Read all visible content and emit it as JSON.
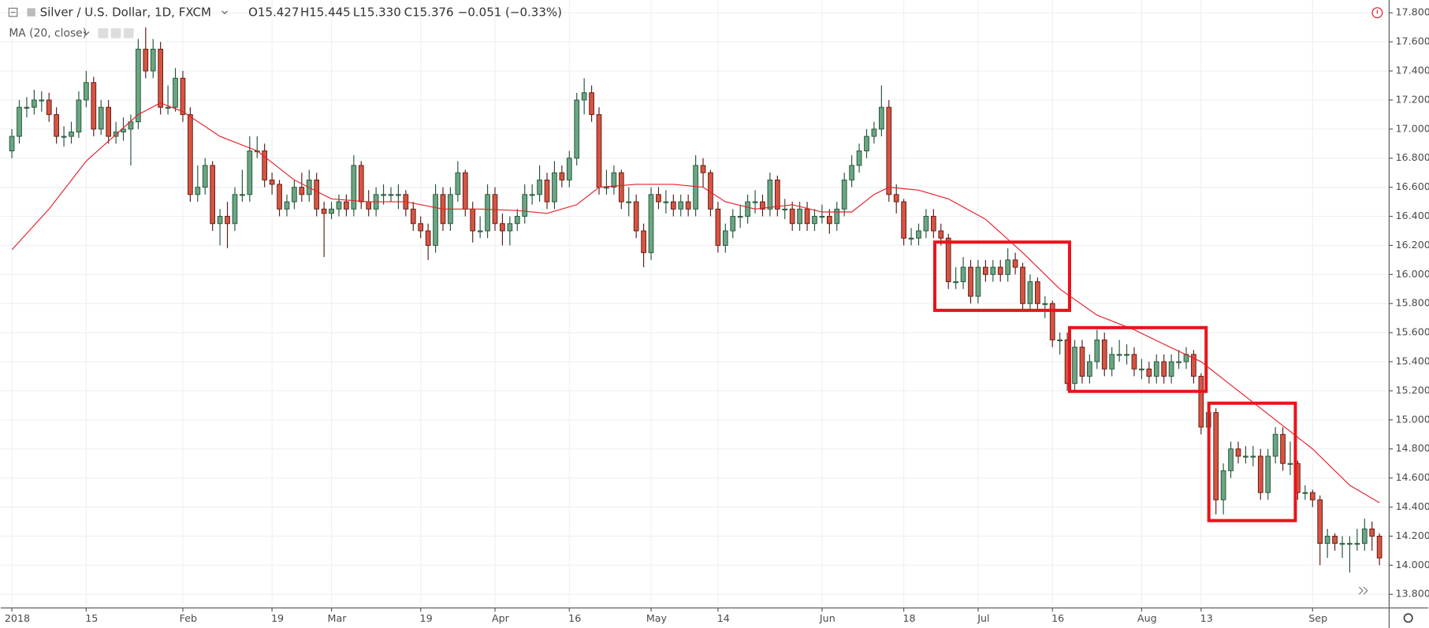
{
  "chart_data": {
    "type": "candlestick",
    "title": "Silver / U.S. Dollar, 1D, FXCM",
    "ohlc_legend": [
      "O15.427",
      "H15.445",
      "L15.330",
      "C15.376",
      "−0.051 (−0.33%)"
    ],
    "indicator": "MA (20, close)",
    "up_color": "#6ba583",
    "up_border": "#225437",
    "down_color": "#d75442",
    "down_border": "#5b1a13",
    "ma_color": "#e8202a",
    "grid": true,
    "ylim": [
      13.706,
      17.888
    ],
    "xlim": [
      -1.5,
      185.3
    ],
    "yticks": [
      {
        "value": 13.8,
        "label": "13.800"
      },
      {
        "value": 14.0,
        "label": "14.000"
      },
      {
        "value": 14.2,
        "label": "14.200"
      },
      {
        "value": 14.4,
        "label": "14.400"
      },
      {
        "value": 14.6,
        "label": "14.600"
      },
      {
        "value": 14.8,
        "label": "14.800"
      },
      {
        "value": 15.0,
        "label": "15.000"
      },
      {
        "value": 15.2,
        "label": "15.200"
      },
      {
        "value": 15.4,
        "label": "15.400"
      },
      {
        "value": 15.6,
        "label": "15.600"
      },
      {
        "value": 15.8,
        "label": "15.800"
      },
      {
        "value": 16.0,
        "label": "16.000"
      },
      {
        "value": 16.2,
        "label": "16.200"
      },
      {
        "value": 16.4,
        "label": "16.400"
      },
      {
        "value": 16.6,
        "label": "16.600"
      },
      {
        "value": 16.8,
        "label": "16.800"
      },
      {
        "value": 17.0,
        "label": "17.000"
      },
      {
        "value": 17.2,
        "label": "17.200"
      },
      {
        "value": 17.4,
        "label": "17.400"
      },
      {
        "value": 17.6,
        "label": "17.600"
      },
      {
        "value": 17.8,
        "label": "17.800"
      }
    ],
    "xticks": [
      {
        "value": 0,
        "label": "2018"
      },
      {
        "value": 10,
        "label": "15"
      },
      {
        "value": 23,
        "label": "Feb"
      },
      {
        "value": 35,
        "label": "19"
      },
      {
        "value": 43,
        "label": "Mar"
      },
      {
        "value": 55,
        "label": "19"
      },
      {
        "value": 65,
        "label": "Apr"
      },
      {
        "value": 75,
        "label": "16"
      },
      {
        "value": 86,
        "label": "May"
      },
      {
        "value": 95,
        "label": "14"
      },
      {
        "value": 109,
        "label": "Jun"
      },
      {
        "value": 120,
        "label": "18"
      },
      {
        "value": 130,
        "label": "Jul"
      },
      {
        "value": 140,
        "label": "16"
      },
      {
        "value": 152,
        "label": "Aug"
      },
      {
        "value": 160,
        "label": "13"
      },
      {
        "value": 175,
        "label": "Sep"
      }
    ],
    "candles": [
      [
        16.85,
        17.0,
        16.8,
        16.95
      ],
      [
        16.95,
        17.2,
        16.9,
        17.15
      ],
      [
        17.15,
        17.22,
        17.08,
        17.15
      ],
      [
        17.15,
        17.27,
        17.1,
        17.2
      ],
      [
        17.2,
        17.26,
        17.12,
        17.2
      ],
      [
        17.2,
        17.25,
        17.05,
        17.1
      ],
      [
        17.1,
        17.15,
        16.9,
        16.95
      ],
      [
        16.95,
        17.02,
        16.88,
        16.95
      ],
      [
        16.95,
        17.05,
        16.9,
        16.98
      ],
      [
        16.98,
        17.26,
        16.94,
        17.2
      ],
      [
        17.2,
        17.4,
        17.15,
        17.32
      ],
      [
        17.32,
        17.36,
        16.95,
        17.0
      ],
      [
        17.0,
        17.2,
        16.96,
        17.15
      ],
      [
        17.15,
        17.2,
        16.9,
        16.95
      ],
      [
        16.95,
        17.05,
        16.9,
        16.98
      ],
      [
        16.98,
        17.08,
        16.92,
        17.0
      ],
      [
        17.0,
        17.1,
        16.75,
        17.05
      ],
      [
        17.05,
        17.62,
        17.0,
        17.55
      ],
      [
        17.55,
        17.7,
        17.35,
        17.4
      ],
      [
        17.4,
        17.62,
        17.35,
        17.55
      ],
      [
        17.55,
        17.6,
        17.1,
        17.15
      ],
      [
        17.15,
        17.3,
        17.1,
        17.15
      ],
      [
        17.15,
        17.42,
        17.12,
        17.35
      ],
      [
        17.35,
        17.4,
        17.05,
        17.1
      ],
      [
        17.1,
        17.15,
        16.5,
        16.55
      ],
      [
        16.55,
        16.75,
        16.5,
        16.6
      ],
      [
        16.6,
        16.8,
        16.55,
        16.75
      ],
      [
        16.75,
        16.78,
        16.3,
        16.35
      ],
      [
        16.35,
        16.45,
        16.2,
        16.4
      ],
      [
        16.4,
        16.5,
        16.18,
        16.35
      ],
      [
        16.35,
        16.6,
        16.3,
        16.55
      ],
      [
        16.55,
        16.72,
        16.5,
        16.55
      ],
      [
        16.55,
        16.95,
        16.5,
        16.85
      ],
      [
        16.85,
        16.95,
        16.8,
        16.85
      ],
      [
        16.85,
        16.9,
        16.6,
        16.65
      ],
      [
        16.65,
        16.7,
        16.55,
        16.62
      ],
      [
        16.62,
        16.65,
        16.4,
        16.45
      ],
      [
        16.45,
        16.55,
        16.4,
        16.5
      ],
      [
        16.5,
        16.65,
        16.45,
        16.6
      ],
      [
        16.6,
        16.7,
        16.5,
        16.55
      ],
      [
        16.55,
        16.72,
        16.5,
        16.65
      ],
      [
        16.65,
        16.7,
        16.4,
        16.45
      ],
      [
        16.45,
        16.5,
        16.12,
        16.42
      ],
      [
        16.42,
        16.5,
        16.38,
        16.45
      ],
      [
        16.45,
        16.55,
        16.4,
        16.5
      ],
      [
        16.5,
        16.55,
        16.4,
        16.45
      ],
      [
        16.45,
        16.82,
        16.4,
        16.75
      ],
      [
        16.75,
        16.78,
        16.45,
        16.5
      ],
      [
        16.5,
        16.58,
        16.4,
        16.45
      ],
      [
        16.45,
        16.6,
        16.4,
        16.55
      ],
      [
        16.55,
        16.62,
        16.48,
        16.55
      ],
      [
        16.55,
        16.6,
        16.5,
        16.55
      ],
      [
        16.55,
        16.62,
        16.45,
        16.55
      ],
      [
        16.55,
        16.58,
        16.4,
        16.45
      ],
      [
        16.45,
        16.5,
        16.3,
        16.35
      ],
      [
        16.35,
        16.4,
        16.25,
        16.3
      ],
      [
        16.3,
        16.35,
        16.1,
        16.2
      ],
      [
        16.2,
        16.62,
        16.15,
        16.55
      ],
      [
        16.55,
        16.6,
        16.3,
        16.35
      ],
      [
        16.35,
        16.6,
        16.3,
        16.55
      ],
      [
        16.55,
        16.78,
        16.5,
        16.7
      ],
      [
        16.7,
        16.72,
        16.4,
        16.45
      ],
      [
        16.45,
        16.5,
        16.22,
        16.3
      ],
      [
        16.3,
        16.4,
        16.25,
        16.3
      ],
      [
        16.3,
        16.62,
        16.25,
        16.55
      ],
      [
        16.55,
        16.6,
        16.3,
        16.35
      ],
      [
        16.35,
        16.42,
        16.2,
        16.3
      ],
      [
        16.3,
        16.4,
        16.2,
        16.35
      ],
      [
        16.35,
        16.45,
        16.3,
        16.4
      ],
      [
        16.4,
        16.62,
        16.35,
        16.55
      ],
      [
        16.55,
        16.62,
        16.48,
        16.55
      ],
      [
        16.55,
        16.75,
        16.5,
        16.65
      ],
      [
        16.65,
        16.7,
        16.45,
        16.5
      ],
      [
        16.5,
        16.78,
        16.45,
        16.7
      ],
      [
        16.7,
        16.75,
        16.6,
        16.65
      ],
      [
        16.65,
        16.85,
        16.6,
        16.8
      ],
      [
        16.8,
        17.25,
        16.75,
        17.2
      ],
      [
        17.2,
        17.35,
        17.1,
        17.25
      ],
      [
        17.25,
        17.3,
        17.05,
        17.1
      ],
      [
        17.1,
        17.15,
        16.55,
        16.6
      ],
      [
        16.6,
        16.72,
        16.55,
        16.6
      ],
      [
        16.6,
        16.75,
        16.55,
        16.7
      ],
      [
        16.7,
        16.72,
        16.45,
        16.5
      ],
      [
        16.5,
        16.6,
        16.4,
        16.5
      ],
      [
        16.5,
        16.55,
        16.25,
        16.3
      ],
      [
        16.3,
        16.35,
        16.05,
        16.15
      ],
      [
        16.15,
        16.6,
        16.1,
        16.55
      ],
      [
        16.55,
        16.6,
        16.45,
        16.5
      ],
      [
        16.5,
        16.58,
        16.42,
        16.5
      ],
      [
        16.5,
        16.55,
        16.4,
        16.45
      ],
      [
        16.45,
        16.55,
        16.4,
        16.5
      ],
      [
        16.5,
        16.55,
        16.4,
        16.45
      ],
      [
        16.45,
        16.82,
        16.4,
        16.75
      ],
      [
        16.75,
        16.8,
        16.6,
        16.7
      ],
      [
        16.7,
        16.72,
        16.4,
        16.45
      ],
      [
        16.45,
        16.5,
        16.15,
        16.2
      ],
      [
        16.2,
        16.35,
        16.15,
        16.3
      ],
      [
        16.3,
        16.45,
        16.25,
        16.4
      ],
      [
        16.4,
        16.48,
        16.32,
        16.4
      ],
      [
        16.4,
        16.55,
        16.35,
        16.5
      ],
      [
        16.5,
        16.58,
        16.42,
        16.5
      ],
      [
        16.5,
        16.55,
        16.4,
        16.45
      ],
      [
        16.45,
        16.7,
        16.4,
        16.65
      ],
      [
        16.65,
        16.68,
        16.4,
        16.45
      ],
      [
        16.45,
        16.52,
        16.38,
        16.45
      ],
      [
        16.45,
        16.5,
        16.3,
        16.35
      ],
      [
        16.35,
        16.5,
        16.3,
        16.45
      ],
      [
        16.45,
        16.5,
        16.3,
        16.35
      ],
      [
        16.35,
        16.45,
        16.3,
        16.4
      ],
      [
        16.4,
        16.48,
        16.35,
        16.4
      ],
      [
        16.4,
        16.45,
        16.28,
        16.35
      ],
      [
        16.35,
        16.5,
        16.3,
        16.45
      ],
      [
        16.45,
        16.7,
        16.4,
        16.65
      ],
      [
        16.65,
        16.82,
        16.6,
        16.75
      ],
      [
        16.75,
        16.9,
        16.7,
        16.85
      ],
      [
        16.85,
        17.0,
        16.8,
        16.95
      ],
      [
        16.95,
        17.05,
        16.9,
        17.0
      ],
      [
        17.0,
        17.3,
        16.95,
        17.15
      ],
      [
        17.15,
        17.2,
        16.5,
        16.55
      ],
      [
        16.55,
        16.62,
        16.42,
        16.5
      ],
      [
        16.5,
        16.52,
        16.2,
        16.25
      ],
      [
        16.25,
        16.32,
        16.2,
        16.25
      ],
      [
        16.25,
        16.35,
        16.2,
        16.3
      ],
      [
        16.3,
        16.45,
        16.25,
        16.4
      ],
      [
        16.4,
        16.45,
        16.25,
        16.3
      ],
      [
        16.3,
        16.35,
        16.2,
        16.25
      ],
      [
        16.25,
        16.28,
        15.9,
        15.95
      ],
      [
        15.95,
        16.05,
        15.9,
        15.95
      ],
      [
        15.95,
        16.12,
        15.9,
        16.05
      ],
      [
        16.05,
        16.1,
        15.8,
        15.85
      ],
      [
        15.85,
        16.1,
        15.8,
        16.05
      ],
      [
        16.05,
        16.1,
        15.95,
        16.0
      ],
      [
        16.0,
        16.1,
        15.95,
        16.05
      ],
      [
        16.05,
        16.1,
        15.95,
        16.0
      ],
      [
        16.0,
        16.18,
        15.95,
        16.1
      ],
      [
        16.1,
        16.15,
        16.0,
        16.05
      ],
      [
        16.05,
        16.08,
        15.75,
        15.8
      ],
      [
        15.8,
        16.0,
        15.75,
        15.95
      ],
      [
        15.95,
        15.98,
        15.75,
        15.8
      ],
      [
        15.8,
        15.85,
        15.7,
        15.8
      ],
      [
        15.8,
        15.82,
        15.5,
        15.55
      ],
      [
        15.55,
        15.6,
        15.45,
        15.55
      ],
      [
        15.55,
        15.6,
        15.2,
        15.25
      ],
      [
        15.25,
        15.55,
        15.2,
        15.5
      ],
      [
        15.5,
        15.55,
        15.25,
        15.3
      ],
      [
        15.3,
        15.45,
        15.25,
        15.4
      ],
      [
        15.4,
        15.62,
        15.35,
        15.55
      ],
      [
        15.55,
        15.6,
        15.3,
        15.35
      ],
      [
        15.35,
        15.5,
        15.3,
        15.45
      ],
      [
        15.45,
        15.55,
        15.4,
        15.45
      ],
      [
        15.45,
        15.52,
        15.38,
        15.45
      ],
      [
        15.45,
        15.5,
        15.3,
        15.35
      ],
      [
        15.35,
        15.42,
        15.28,
        15.35
      ],
      [
        15.35,
        15.4,
        15.25,
        15.3
      ],
      [
        15.3,
        15.45,
        15.25,
        15.4
      ],
      [
        15.4,
        15.45,
        15.25,
        15.3
      ],
      [
        15.3,
        15.45,
        15.25,
        15.4
      ],
      [
        15.4,
        15.48,
        15.35,
        15.4
      ],
      [
        15.4,
        15.5,
        15.35,
        15.45
      ],
      [
        15.45,
        15.48,
        15.25,
        15.3
      ],
      [
        15.3,
        15.32,
        14.9,
        14.95
      ],
      [
        14.95,
        15.1,
        14.9,
        15.05
      ],
      [
        15.05,
        15.08,
        14.35,
        14.45
      ],
      [
        14.45,
        14.7,
        14.35,
        14.65
      ],
      [
        14.65,
        14.85,
        14.6,
        14.8
      ],
      [
        14.8,
        14.85,
        14.7,
        14.75
      ],
      [
        14.75,
        14.82,
        14.7,
        14.75
      ],
      [
        14.75,
        14.82,
        14.68,
        14.75
      ],
      [
        14.75,
        14.8,
        14.45,
        14.5
      ],
      [
        14.5,
        14.8,
        14.45,
        14.75
      ],
      [
        14.75,
        14.95,
        14.7,
        14.9
      ],
      [
        14.9,
        14.95,
        14.65,
        14.7
      ],
      [
        14.7,
        14.85,
        14.62,
        14.7
      ],
      [
        14.7,
        14.72,
        14.45,
        14.5
      ],
      [
        14.5,
        14.55,
        14.45,
        14.5
      ],
      [
        14.5,
        14.52,
        14.4,
        14.45
      ],
      [
        14.45,
        14.48,
        14.0,
        14.15
      ],
      [
        14.15,
        14.25,
        14.05,
        14.2
      ],
      [
        14.2,
        14.22,
        14.1,
        14.15
      ],
      [
        14.15,
        14.2,
        14.05,
        14.15
      ],
      [
        14.15,
        14.2,
        13.95,
        14.15
      ],
      [
        14.15,
        14.25,
        14.1,
        14.15
      ],
      [
        14.15,
        14.32,
        14.1,
        14.25
      ],
      [
        14.25,
        14.3,
        14.1,
        14.2
      ],
      [
        14.2,
        14.22,
        14.0,
        14.05
      ]
    ],
    "ma": {
      "x": [
        0,
        5,
        10,
        17,
        20,
        23,
        28,
        33,
        38,
        43,
        48,
        53,
        58,
        63,
        68,
        72,
        76,
        79,
        84,
        89,
        93,
        96,
        100,
        105,
        109,
        113,
        116,
        118,
        122,
        126,
        131,
        136,
        141,
        146,
        151,
        155,
        160,
        165,
        170,
        175,
        180,
        184
      ],
      "values": [
        16.17,
        16.45,
        16.78,
        17.1,
        17.18,
        17.12,
        16.95,
        16.85,
        16.65,
        16.52,
        16.5,
        16.5,
        16.45,
        16.45,
        16.44,
        16.42,
        16.48,
        16.6,
        16.62,
        16.62,
        16.6,
        16.5,
        16.45,
        16.48,
        16.43,
        16.43,
        16.55,
        16.6,
        16.58,
        16.52,
        16.38,
        16.15,
        15.9,
        15.72,
        15.62,
        15.52,
        15.4,
        15.2,
        15.0,
        14.8,
        14.55,
        14.43
      ]
    }
  }
}
